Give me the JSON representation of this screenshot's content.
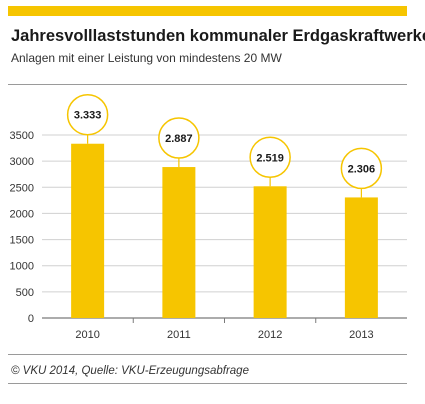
{
  "header": {
    "title": "Jahresvolllaststunden kommunaler Erdgaskraftwerke",
    "subtitle": "Anlagen mit einer Leistung von mindestens 20 MW"
  },
  "footer": {
    "source": "© VKU 2014, Quelle: VKU-Erzeugungsabfrage"
  },
  "colors": {
    "accent": "#f6c500",
    "axis": "#7a7a7a",
    "gridline": "#d0d0d0"
  },
  "chart_data": {
    "type": "bar",
    "title": "Jahresvolllaststunden kommunaler Erdgaskraftwerke",
    "subtitle": "Anlagen mit einer Leistung von mindestens 20 MW",
    "categories": [
      "2010",
      "2011",
      "2012",
      "2013"
    ],
    "values": [
      3333,
      2887,
      2519,
      2306
    ],
    "data_labels": [
      "3.333",
      "2.887",
      "2.519",
      "2.306"
    ],
    "yticks": [
      0,
      500,
      1000,
      1500,
      2000,
      2500,
      3000,
      3500
    ],
    "ytick_labels": [
      "0",
      "500",
      "1000",
      "1500",
      "2000",
      "2500",
      "3000",
      "3500"
    ],
    "ylim": [
      0,
      3500
    ],
    "xlabel": "",
    "ylabel": "",
    "grid": true,
    "legend": "none"
  }
}
